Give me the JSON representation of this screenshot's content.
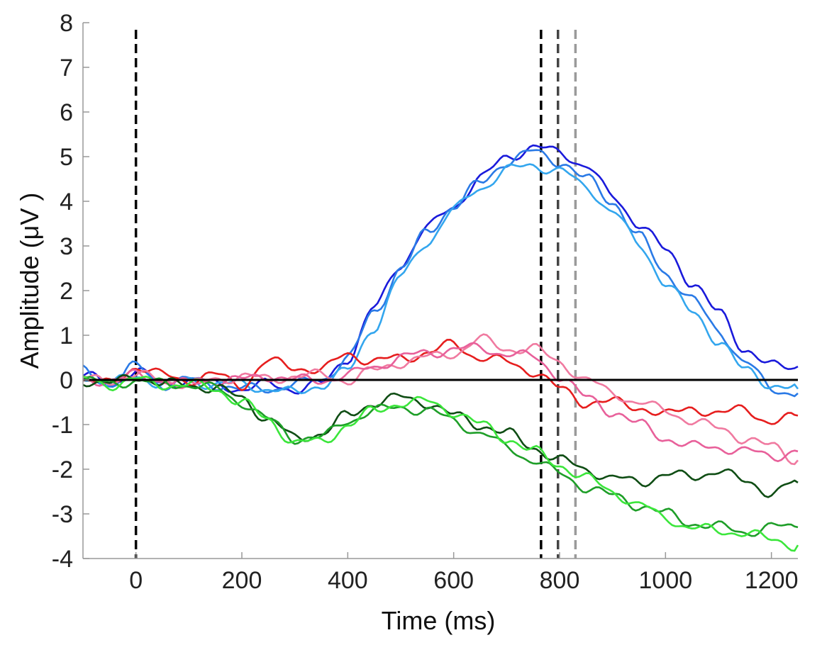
{
  "chart_data": {
    "type": "line",
    "title": "",
    "xlabel": "Time (ms)",
    "ylabel": "Amplitude (μV )",
    "xlim": [
      -100,
      1250
    ],
    "ylim": [
      -4,
      8
    ],
    "x_ticks": [
      0,
      200,
      400,
      600,
      800,
      1000,
      1200
    ],
    "x_tick_labels": [
      "0",
      "200",
      "400",
      "600",
      "800",
      "1000",
      "1200"
    ],
    "y_ticks": [
      -4,
      -3,
      -2,
      -1,
      0,
      1,
      2,
      3,
      4,
      5,
      6,
      7,
      8
    ],
    "y_tick_labels": [
      "-4",
      "-3",
      "-2",
      "-1",
      "0",
      "1",
      "2",
      "3",
      "4",
      "5",
      "6",
      "7",
      "8"
    ],
    "grid": false,
    "legend": "none",
    "zero_line": {
      "y": 0,
      "color": "#000000"
    },
    "vlines": [
      {
        "x": 0,
        "color": "#000000",
        "style": "dashed"
      },
      {
        "x": 765,
        "color": "#000000",
        "style": "dashed"
      },
      {
        "x": 797,
        "color": "#444444",
        "style": "dashed"
      },
      {
        "x": 830,
        "color": "#9a9a9a",
        "style": "dashed"
      }
    ],
    "series": [
      {
        "color": "#1a1adb",
        "x": [
          -100,
          -50,
          0,
          50,
          100,
          150,
          200,
          250,
          300,
          350,
          400,
          450,
          500,
          550,
          600,
          650,
          700,
          750,
          800,
          850,
          900,
          950,
          1000,
          1050,
          1100,
          1150,
          1200,
          1250
        ],
        "y": [
          0.1,
          -0.1,
          0.2,
          -0.1,
          0.0,
          -0.1,
          -0.2,
          -0.1,
          -0.2,
          -0.1,
          0.5,
          1.6,
          2.6,
          3.4,
          3.9,
          4.5,
          5.0,
          5.2,
          5.1,
          4.8,
          4.1,
          3.5,
          2.9,
          2.2,
          1.5,
          0.7,
          0.3,
          0.3
        ]
      },
      {
        "color": "#2a7ae6",
        "x": [
          -100,
          -50,
          0,
          50,
          100,
          150,
          200,
          250,
          300,
          350,
          400,
          450,
          500,
          550,
          600,
          650,
          700,
          750,
          800,
          850,
          900,
          950,
          1000,
          1050,
          1100,
          1150,
          1200,
          1250
        ],
        "y": [
          0.2,
          -0.1,
          0.3,
          -0.1,
          0.0,
          -0.1,
          -0.2,
          -0.2,
          -0.1,
          0.0,
          0.5,
          1.5,
          2.5,
          3.3,
          3.9,
          4.4,
          4.9,
          5.1,
          4.9,
          4.5,
          4.0,
          3.2,
          2.4,
          1.8,
          1.1,
          0.4,
          -0.2,
          -0.3
        ]
      },
      {
        "color": "#33a6ee",
        "x": [
          -100,
          -50,
          0,
          50,
          100,
          150,
          200,
          250,
          300,
          350,
          400,
          450,
          500,
          550,
          600,
          650,
          700,
          750,
          800,
          850,
          900,
          950,
          1000,
          1050,
          1100,
          1150,
          1200,
          1250
        ],
        "y": [
          0.1,
          -0.1,
          0.1,
          -0.1,
          0.0,
          -0.1,
          -0.1,
          -0.2,
          -0.3,
          -0.1,
          0.2,
          1.2,
          2.3,
          3.1,
          3.8,
          4.3,
          4.7,
          4.8,
          4.7,
          4.3,
          3.8,
          3.0,
          2.2,
          1.5,
          0.9,
          0.2,
          -0.1,
          -0.2
        ]
      },
      {
        "color": "#e61e1e",
        "x": [
          -100,
          -50,
          0,
          50,
          100,
          150,
          200,
          250,
          300,
          350,
          400,
          450,
          500,
          550,
          600,
          650,
          700,
          750,
          800,
          850,
          900,
          950,
          1000,
          1050,
          1100,
          1150,
          1200,
          1250
        ],
        "y": [
          0.0,
          -0.1,
          0.3,
          0.1,
          0.0,
          0.1,
          -0.1,
          0.4,
          0.3,
          0.2,
          0.6,
          0.4,
          0.5,
          0.6,
          0.8,
          0.5,
          0.4,
          0.2,
          -0.2,
          -0.5,
          -0.5,
          -0.6,
          -0.8,
          -0.6,
          -0.8,
          -0.6,
          -1.0,
          -0.8
        ]
      },
      {
        "color": "#f07aa0",
        "x": [
          -100,
          -50,
          0,
          50,
          100,
          150,
          200,
          250,
          300,
          350,
          400,
          450,
          500,
          550,
          600,
          650,
          700,
          750,
          800,
          850,
          900,
          950,
          1000,
          1050,
          1100,
          1150,
          1200,
          1250
        ],
        "y": [
          0.0,
          0.0,
          0.1,
          0.0,
          -0.1,
          0.0,
          0.1,
          0.0,
          0.1,
          0.1,
          0.0,
          0.2,
          0.4,
          0.5,
          0.6,
          0.9,
          0.7,
          0.7,
          0.4,
          0.0,
          -0.3,
          -0.5,
          -0.7,
          -0.9,
          -1.1,
          -1.3,
          -1.5,
          -1.8
        ]
      },
      {
        "color": "#e8609a",
        "x": [
          -100,
          -50,
          0,
          50,
          100,
          150,
          200,
          250,
          300,
          350,
          400,
          450,
          500,
          550,
          600,
          650,
          700,
          750,
          800,
          850,
          900,
          950,
          1000,
          1050,
          1100,
          1150,
          1200,
          1250
        ],
        "y": [
          0.0,
          0.0,
          0.1,
          0.0,
          -0.1,
          0.0,
          0.0,
          0.1,
          0.0,
          0.0,
          0.1,
          0.3,
          0.5,
          0.6,
          0.7,
          0.7,
          0.6,
          0.5,
          0.1,
          -0.4,
          -0.7,
          -1.0,
          -1.3,
          -1.5,
          -1.5,
          -1.6,
          -1.7,
          -1.6
        ]
      },
      {
        "color": "#0f4d14",
        "x": [
          -100,
          -50,
          0,
          50,
          100,
          150,
          200,
          250,
          300,
          350,
          400,
          450,
          500,
          550,
          600,
          650,
          700,
          750,
          800,
          850,
          900,
          950,
          1000,
          1050,
          1100,
          1150,
          1200,
          1250
        ],
        "y": [
          0.0,
          -0.1,
          0.1,
          -0.1,
          -0.1,
          -0.2,
          -0.4,
          -0.9,
          -1.3,
          -1.2,
          -0.8,
          -0.5,
          -0.4,
          -0.5,
          -0.8,
          -1.0,
          -1.2,
          -1.5,
          -1.8,
          -2.0,
          -2.2,
          -2.3,
          -2.1,
          -2.2,
          -2.0,
          -2.3,
          -2.5,
          -2.3
        ]
      },
      {
        "color": "#1e9e28",
        "x": [
          -100,
          -50,
          0,
          50,
          100,
          150,
          200,
          250,
          300,
          350,
          400,
          450,
          500,
          550,
          600,
          650,
          700,
          750,
          800,
          850,
          900,
          950,
          1000,
          1050,
          1100,
          1150,
          1200,
          1250
        ],
        "y": [
          0.0,
          -0.1,
          0.0,
          -0.1,
          -0.1,
          -0.2,
          -0.5,
          -0.9,
          -1.3,
          -1.3,
          -0.9,
          -0.7,
          -0.6,
          -0.7,
          -0.9,
          -1.2,
          -1.5,
          -1.8,
          -2.1,
          -2.4,
          -2.6,
          -2.8,
          -3.0,
          -3.2,
          -3.3,
          -3.4,
          -3.3,
          -3.3
        ]
      },
      {
        "color": "#3be63b",
        "x": [
          -100,
          -50,
          0,
          50,
          100,
          150,
          200,
          250,
          300,
          350,
          400,
          450,
          500,
          550,
          600,
          650,
          700,
          750,
          800,
          850,
          900,
          950,
          1000,
          1050,
          1100,
          1150,
          1200,
          1250
        ],
        "y": [
          0.0,
          -0.1,
          0.0,
          -0.1,
          -0.1,
          -0.2,
          -0.5,
          -0.9,
          -1.4,
          -1.4,
          -1.0,
          -0.7,
          -0.5,
          -0.5,
          -0.7,
          -1.0,
          -1.3,
          -1.6,
          -1.9,
          -2.2,
          -2.5,
          -2.8,
          -3.1,
          -3.3,
          -3.4,
          -3.4,
          -3.6,
          -3.7
        ]
      }
    ]
  }
}
